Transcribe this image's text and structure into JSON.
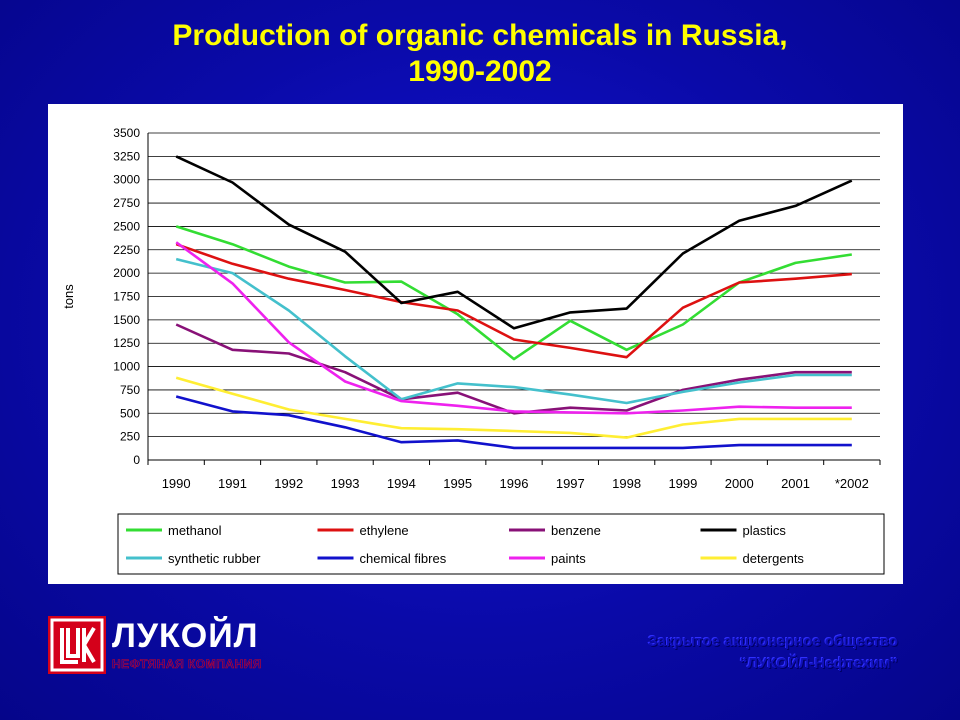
{
  "header": {
    "title_line1": "Production of organic chemicals in Russia,",
    "title_line2": "1990-2002"
  },
  "chart_data": {
    "type": "line",
    "title": "Production of organic chemicals in Russia, 1990-2002",
    "xlabel": "",
    "ylabel": "tons",
    "ylim": [
      0,
      3500
    ],
    "yticks": [
      0,
      250,
      500,
      750,
      1000,
      1250,
      1500,
      1750,
      2000,
      2250,
      2500,
      2750,
      3000,
      3250,
      3500
    ],
    "categories": [
      "1990",
      "1991",
      "1992",
      "1993",
      "1994",
      "1995",
      "1996",
      "1997",
      "1998",
      "1999",
      "2000",
      "2001",
      "*2002"
    ],
    "grid": "horizontal",
    "legend_position": "bottom",
    "series": [
      {
        "name": "methanol",
        "color": "#33dd33",
        "values": [
          2500,
          2310,
          2070,
          1900,
          1910,
          1560,
          1080,
          1490,
          1180,
          1450,
          1900,
          2110,
          2200
        ]
      },
      {
        "name": "ethylene",
        "color": "#dd1111",
        "values": [
          2310,
          2100,
          1940,
          1820,
          1690,
          1600,
          1290,
          1200,
          1100,
          1630,
          1900,
          1940,
          1990
        ]
      },
      {
        "name": "benzene",
        "color": "#881177",
        "values": [
          1450,
          1180,
          1140,
          940,
          650,
          720,
          500,
          560,
          530,
          750,
          860,
          940,
          940
        ]
      },
      {
        "name": "plastics",
        "color": "#000000",
        "values": [
          3250,
          2970,
          2520,
          2230,
          1680,
          1800,
          1410,
          1580,
          1620,
          2210,
          2560,
          2720,
          2990
        ]
      },
      {
        "name": "synthetic rubber",
        "color": "#44c0cc",
        "values": [
          2150,
          2000,
          1600,
          1110,
          650,
          820,
          780,
          700,
          610,
          730,
          830,
          910,
          910
        ]
      },
      {
        "name": "chemical fibres",
        "color": "#1111cc",
        "values": [
          680,
          520,
          480,
          350,
          190,
          210,
          130,
          130,
          130,
          130,
          160,
          160,
          160
        ]
      },
      {
        "name": "paints",
        "color": "#ee22ee",
        "values": [
          2330,
          1890,
          1260,
          840,
          630,
          580,
          520,
          510,
          500,
          530,
          570,
          560,
          560
        ]
      },
      {
        "name": "detergents",
        "color": "#ffee33",
        "values": [
          880,
          710,
          540,
          440,
          340,
          330,
          310,
          290,
          240,
          380,
          440,
          440,
          440
        ]
      }
    ]
  },
  "logo": {
    "name": "ЛУКОЙЛ",
    "subtitle": "НЕФТЯНАЯ КОМПАНИЯ",
    "mark_icon": "lukoil-logo-mark"
  },
  "footer": {
    "company_line1": "Закрытое акционерное общество",
    "company_line2": "“ЛУКОЙЛ-Нефтехим”"
  }
}
